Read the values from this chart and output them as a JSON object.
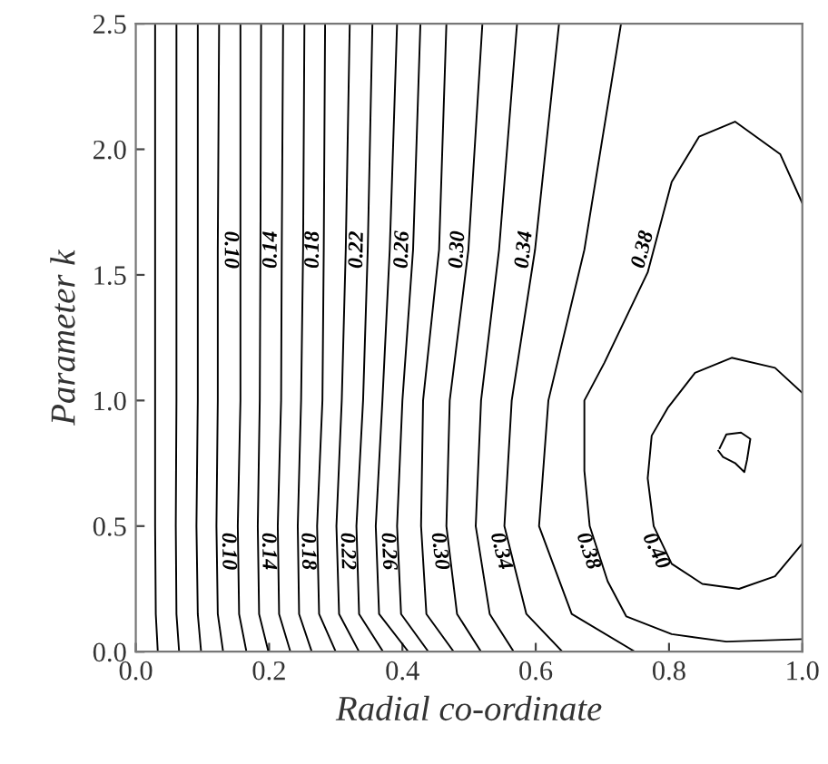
{
  "chart_data": {
    "type": "line",
    "xlabel": "Radial co-ordinate",
    "ylabel": "Parameter k",
    "xlim": [
      0,
      1
    ],
    "ylim": [
      0,
      2.5
    ],
    "xticks": [
      {
        "value": 0,
        "label": "0.0"
      },
      {
        "value": 0.2,
        "label": "0.2"
      },
      {
        "value": 0.4,
        "label": "0.4"
      },
      {
        "value": 0.6,
        "label": "0.6"
      },
      {
        "value": 0.8,
        "label": "0.8"
      },
      {
        "value": 1,
        "label": "1.0"
      }
    ],
    "yticks": [
      {
        "value": 0,
        "label": "0.0"
      },
      {
        "value": 0.5,
        "label": "0.5"
      },
      {
        "value": 1,
        "label": "1.0"
      },
      {
        "value": 1.5,
        "label": "1.5"
      },
      {
        "value": 2,
        "label": "2.0"
      },
      {
        "value": 2.5,
        "label": "2.5"
      }
    ],
    "grid": false,
    "marker": "none",
    "line_style": "solid",
    "series": [
      {
        "color": "#000000",
        "x": [
          0.029,
          0.029,
          0.029,
          0.029,
          0.03,
          0.033
        ],
        "values": [
          2.5,
          1.6,
          1.0,
          0.5,
          0.15,
          0.0
        ]
      },
      {
        "color": "#000000",
        "x": [
          0.061,
          0.061,
          0.061,
          0.06,
          0.061,
          0.065
        ],
        "values": [
          2.5,
          1.6,
          1.0,
          0.5,
          0.15,
          0.0
        ]
      },
      {
        "color": "#000000",
        "x": [
          0.093,
          0.093,
          0.093,
          0.091,
          0.093,
          0.098
        ],
        "values": [
          2.5,
          1.6,
          1.0,
          0.5,
          0.15,
          0.0
        ]
      },
      {
        "color": "#000000",
        "x": [
          0.125,
          0.123,
          0.123,
          0.121,
          0.123,
          0.131
        ],
        "values": [
          2.5,
          1.6,
          1.0,
          0.5,
          0.15,
          0.0
        ]
      },
      {
        "name": "0.10",
        "color": "#000000",
        "x": [
          0.157,
          0.157,
          0.157,
          0.153,
          0.155,
          0.166
        ],
        "values": [
          2.5,
          1.6,
          1.0,
          0.5,
          0.15,
          0.0
        ]
      },
      {
        "color": "#000000",
        "x": [
          0.188,
          0.187,
          0.186,
          0.183,
          0.185,
          0.199
        ],
        "values": [
          2.5,
          1.6,
          1.0,
          0.5,
          0.15,
          0.0
        ]
      },
      {
        "name": "0.14",
        "color": "#000000",
        "x": [
          0.221,
          0.219,
          0.218,
          0.213,
          0.215,
          0.232
        ],
        "values": [
          2.5,
          1.6,
          1.0,
          0.5,
          0.15,
          0.0
        ]
      },
      {
        "color": "#000000",
        "x": [
          0.253,
          0.251,
          0.248,
          0.243,
          0.245,
          0.264
        ],
        "values": [
          2.5,
          1.6,
          1.0,
          0.5,
          0.15,
          0.0
        ]
      },
      {
        "name": "0.18",
        "color": "#000000",
        "x": [
          0.284,
          0.282,
          0.28,
          0.272,
          0.275,
          0.3
        ],
        "values": [
          2.5,
          1.6,
          1.0,
          0.5,
          0.15,
          0.0
        ]
      },
      {
        "color": "#000000",
        "x": [
          0.321,
          0.315,
          0.309,
          0.301,
          0.305,
          0.335
        ],
        "values": [
          2.5,
          1.6,
          1.0,
          0.5,
          0.15,
          0.0
        ]
      },
      {
        "name": "0.22",
        "color": "#000000",
        "x": [
          0.355,
          0.348,
          0.341,
          0.331,
          0.335,
          0.371
        ],
        "values": [
          2.5,
          1.6,
          1.0,
          0.5,
          0.15,
          0.0
        ]
      },
      {
        "color": "#000000",
        "x": [
          0.392,
          0.381,
          0.37,
          0.36,
          0.365,
          0.409
        ],
        "values": [
          2.5,
          1.6,
          1.0,
          0.5,
          0.15,
          0.0
        ]
      },
      {
        "name": "0.26",
        "color": "#000000",
        "x": [
          0.427,
          0.416,
          0.4,
          0.392,
          0.398,
          0.439
        ],
        "values": [
          2.5,
          1.6,
          1.0,
          0.5,
          0.15,
          0.0
        ]
      },
      {
        "color": "#000000",
        "x": [
          0.466,
          0.455,
          0.431,
          0.428,
          0.436,
          0.477
        ],
        "values": [
          2.5,
          1.6,
          1.0,
          0.5,
          0.15,
          0.0
        ]
      },
      {
        "name": "0.30",
        "color": "#000000",
        "x": [
          0.52,
          0.499,
          0.471,
          0.466,
          0.482,
          0.518
        ],
        "values": [
          2.5,
          1.6,
          1.0,
          0.5,
          0.15,
          0.0
        ]
      },
      {
        "color": "#000000",
        "x": [
          0.572,
          0.545,
          0.518,
          0.51,
          0.531,
          0.567
        ],
        "values": [
          2.5,
          1.6,
          1.0,
          0.5,
          0.15,
          0.0
        ]
      },
      {
        "name": "0.34",
        "color": "#000000",
        "x": [
          0.635,
          0.599,
          0.564,
          0.553,
          0.586,
          0.64
        ],
        "values": [
          2.5,
          1.6,
          1.0,
          0.5,
          0.15,
          0.0
        ]
      },
      {
        "color": "#000000",
        "x": [
          0.728,
          0.673,
          0.619,
          0.605,
          0.654,
          0.749
        ],
        "values": [
          2.5,
          1.6,
          1.0,
          0.5,
          0.15,
          0.0
        ]
      },
      {
        "name": "0.38",
        "color": "#000000",
        "x": [
          1.0,
          0.967,
          0.899,
          0.845,
          0.804,
          0.768,
          0.703,
          0.673,
          0.673,
          0.681,
          0.708,
          0.736,
          0.804,
          0.886,
          1.0
        ],
        "values": [
          1.785,
          1.98,
          2.11,
          2.05,
          1.87,
          1.51,
          1.15,
          1.0,
          0.72,
          0.5,
          0.28,
          0.14,
          0.07,
          0.04,
          0.05
        ]
      },
      {
        "name": "0.40",
        "color": "#000000",
        "x": [
          1.0,
          0.959,
          0.894,
          0.839,
          0.798,
          0.774,
          0.768,
          0.777,
          0.804,
          0.85,
          0.905,
          0.959,
          1.0
        ],
        "values": [
          1.03,
          1.13,
          1.17,
          1.11,
          0.97,
          0.86,
          0.69,
          0.5,
          0.35,
          0.27,
          0.25,
          0.3,
          0.43
        ]
      },
      {
        "color": "#000000",
        "x": [
          0.876,
          0.886,
          0.908,
          0.922,
          0.917,
          0.913,
          0.899,
          0.881,
          0.874
        ],
        "values": [
          0.81,
          0.865,
          0.872,
          0.847,
          0.763,
          0.715,
          0.751,
          0.775,
          0.8
        ]
      }
    ]
  }
}
